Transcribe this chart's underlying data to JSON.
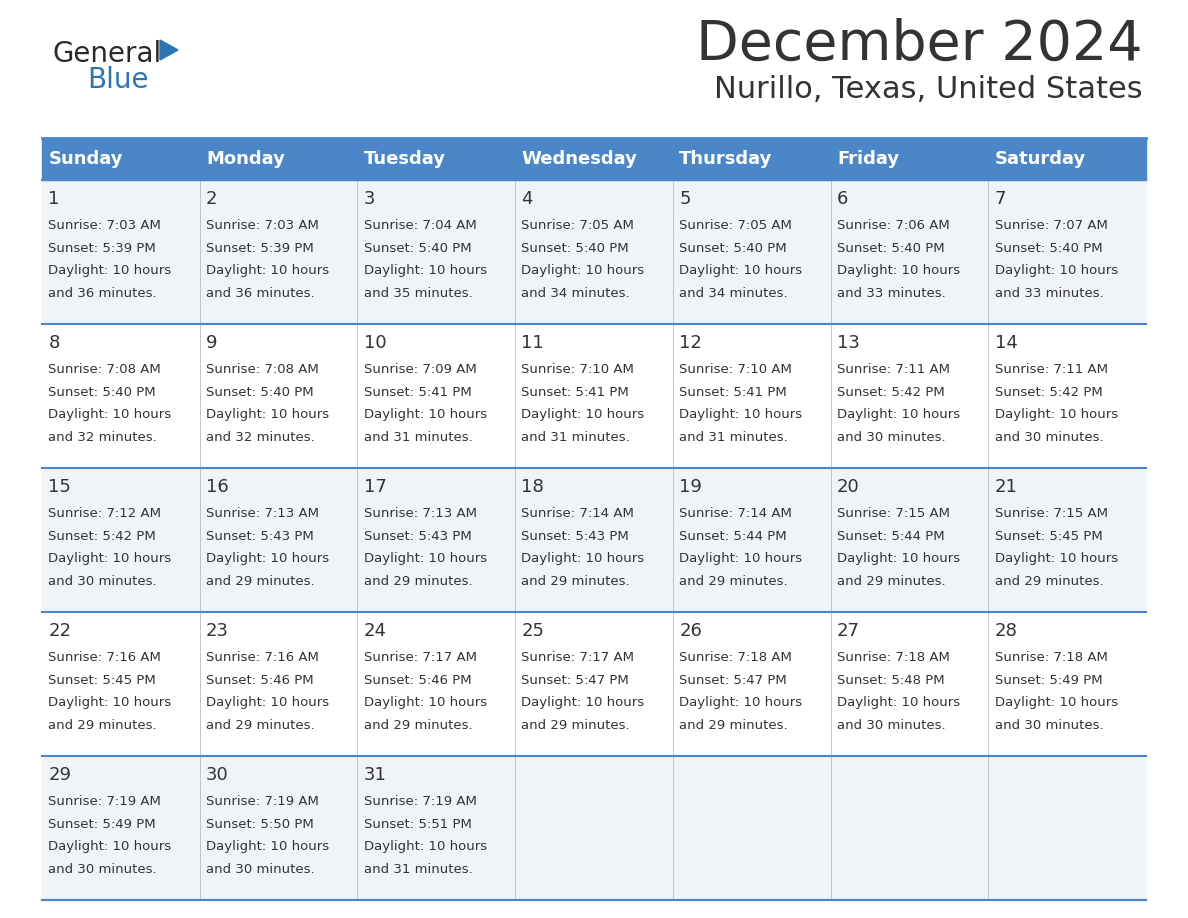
{
  "title": "December 2024",
  "subtitle": "Nurillo, Texas, United States",
  "header_color": "#4a86c8",
  "header_text_color": "#FFFFFF",
  "border_color": "#4a86c8",
  "week_bg_odd": "#f0f4f8",
  "week_bg_even": "#FFFFFF",
  "text_color": "#333333",
  "logo_general_color": "#2a2a2a",
  "logo_blue_color": "#2E75B6",
  "day_names": [
    "Sunday",
    "Monday",
    "Tuesday",
    "Wednesday",
    "Thursday",
    "Friday",
    "Saturday"
  ],
  "calendar_data": [
    [
      {
        "day": 1,
        "sunrise": "7:03 AM",
        "sunset": "5:39 PM",
        "daylight_hours": 10,
        "daylight_minutes": 36
      },
      {
        "day": 2,
        "sunrise": "7:03 AM",
        "sunset": "5:39 PM",
        "daylight_hours": 10,
        "daylight_minutes": 36
      },
      {
        "day": 3,
        "sunrise": "7:04 AM",
        "sunset": "5:40 PM",
        "daylight_hours": 10,
        "daylight_minutes": 35
      },
      {
        "day": 4,
        "sunrise": "7:05 AM",
        "sunset": "5:40 PM",
        "daylight_hours": 10,
        "daylight_minutes": 34
      },
      {
        "day": 5,
        "sunrise": "7:05 AM",
        "sunset": "5:40 PM",
        "daylight_hours": 10,
        "daylight_minutes": 34
      },
      {
        "day": 6,
        "sunrise": "7:06 AM",
        "sunset": "5:40 PM",
        "daylight_hours": 10,
        "daylight_minutes": 33
      },
      {
        "day": 7,
        "sunrise": "7:07 AM",
        "sunset": "5:40 PM",
        "daylight_hours": 10,
        "daylight_minutes": 33
      }
    ],
    [
      {
        "day": 8,
        "sunrise": "7:08 AM",
        "sunset": "5:40 PM",
        "daylight_hours": 10,
        "daylight_minutes": 32
      },
      {
        "day": 9,
        "sunrise": "7:08 AM",
        "sunset": "5:40 PM",
        "daylight_hours": 10,
        "daylight_minutes": 32
      },
      {
        "day": 10,
        "sunrise": "7:09 AM",
        "sunset": "5:41 PM",
        "daylight_hours": 10,
        "daylight_minutes": 31
      },
      {
        "day": 11,
        "sunrise": "7:10 AM",
        "sunset": "5:41 PM",
        "daylight_hours": 10,
        "daylight_minutes": 31
      },
      {
        "day": 12,
        "sunrise": "7:10 AM",
        "sunset": "5:41 PM",
        "daylight_hours": 10,
        "daylight_minutes": 31
      },
      {
        "day": 13,
        "sunrise": "7:11 AM",
        "sunset": "5:42 PM",
        "daylight_hours": 10,
        "daylight_minutes": 30
      },
      {
        "day": 14,
        "sunrise": "7:11 AM",
        "sunset": "5:42 PM",
        "daylight_hours": 10,
        "daylight_minutes": 30
      }
    ],
    [
      {
        "day": 15,
        "sunrise": "7:12 AM",
        "sunset": "5:42 PM",
        "daylight_hours": 10,
        "daylight_minutes": 30
      },
      {
        "day": 16,
        "sunrise": "7:13 AM",
        "sunset": "5:43 PM",
        "daylight_hours": 10,
        "daylight_minutes": 29
      },
      {
        "day": 17,
        "sunrise": "7:13 AM",
        "sunset": "5:43 PM",
        "daylight_hours": 10,
        "daylight_minutes": 29
      },
      {
        "day": 18,
        "sunrise": "7:14 AM",
        "sunset": "5:43 PM",
        "daylight_hours": 10,
        "daylight_minutes": 29
      },
      {
        "day": 19,
        "sunrise": "7:14 AM",
        "sunset": "5:44 PM",
        "daylight_hours": 10,
        "daylight_minutes": 29
      },
      {
        "day": 20,
        "sunrise": "7:15 AM",
        "sunset": "5:44 PM",
        "daylight_hours": 10,
        "daylight_minutes": 29
      },
      {
        "day": 21,
        "sunrise": "7:15 AM",
        "sunset": "5:45 PM",
        "daylight_hours": 10,
        "daylight_minutes": 29
      }
    ],
    [
      {
        "day": 22,
        "sunrise": "7:16 AM",
        "sunset": "5:45 PM",
        "daylight_hours": 10,
        "daylight_minutes": 29
      },
      {
        "day": 23,
        "sunrise": "7:16 AM",
        "sunset": "5:46 PM",
        "daylight_hours": 10,
        "daylight_minutes": 29
      },
      {
        "day": 24,
        "sunrise": "7:17 AM",
        "sunset": "5:46 PM",
        "daylight_hours": 10,
        "daylight_minutes": 29
      },
      {
        "day": 25,
        "sunrise": "7:17 AM",
        "sunset": "5:47 PM",
        "daylight_hours": 10,
        "daylight_minutes": 29
      },
      {
        "day": 26,
        "sunrise": "7:18 AM",
        "sunset": "5:47 PM",
        "daylight_hours": 10,
        "daylight_minutes": 29
      },
      {
        "day": 27,
        "sunrise": "7:18 AM",
        "sunset": "5:48 PM",
        "daylight_hours": 10,
        "daylight_minutes": 30
      },
      {
        "day": 28,
        "sunrise": "7:18 AM",
        "sunset": "5:49 PM",
        "daylight_hours": 10,
        "daylight_minutes": 30
      }
    ],
    [
      {
        "day": 29,
        "sunrise": "7:19 AM",
        "sunset": "5:49 PM",
        "daylight_hours": 10,
        "daylight_minutes": 30
      },
      {
        "day": 30,
        "sunrise": "7:19 AM",
        "sunset": "5:50 PM",
        "daylight_hours": 10,
        "daylight_minutes": 30
      },
      {
        "day": 31,
        "sunrise": "7:19 AM",
        "sunset": "5:51 PM",
        "daylight_hours": 10,
        "daylight_minutes": 31
      },
      null,
      null,
      null,
      null
    ]
  ]
}
